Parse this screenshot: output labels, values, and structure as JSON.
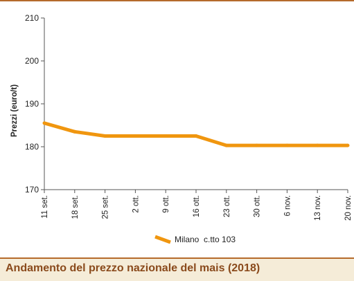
{
  "caption": {
    "title": "Andamento del prezzo nazionale del mais (2018)"
  },
  "colors": {
    "series": "#f0960f",
    "rule": "#b56a2b",
    "caption_bg": "#f5ecd8",
    "caption_text": "#8a4a1c"
  },
  "chart_data": {
    "type": "line",
    "title": "Andamento del prezzo nazionale del mais (2018)",
    "xlabel": "",
    "ylabel": "Prezzi (euro/t)",
    "ylim": [
      170,
      210
    ],
    "yticks": [
      170,
      180,
      190,
      200,
      210
    ],
    "grid": false,
    "legend": "bottom-center",
    "categories": [
      "11 set.",
      "18 set.",
      "25 set.",
      "2 ott.",
      "9 ott.",
      "16 ott.",
      "23 ott.",
      "30 ott.",
      "6 nov.",
      "13 nov.",
      "20 nov."
    ],
    "series": [
      {
        "name": "Milano  c.tto 103",
        "values": [
          185.5,
          183.5,
          182.5,
          182.5,
          182.5,
          182.5,
          180.3,
          180.3,
          180.3,
          180.3,
          180.3
        ]
      }
    ]
  }
}
